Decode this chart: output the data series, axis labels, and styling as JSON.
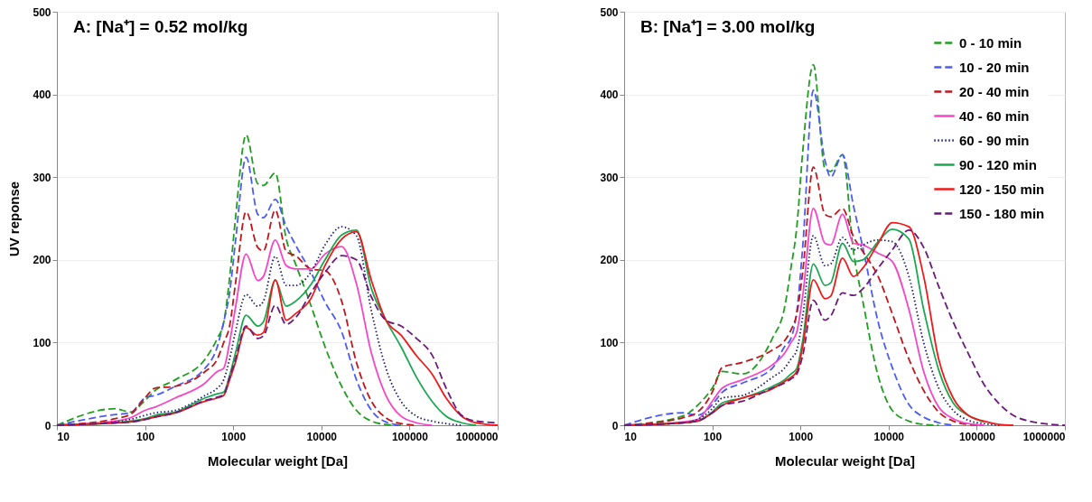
{
  "chart_data": [
    {
      "type": "line",
      "title": "A: [Na⁺] = 0.52 mol/kg",
      "xlabel": "Molecular weight [Da]",
      "ylabel": "UV reponse",
      "log": "x",
      "grid": "y",
      "legend": false,
      "xlim": [
        10,
        1000000
      ],
      "xticks": [
        10,
        100,
        1000,
        10000,
        100000,
        1000000
      ],
      "ylim": [
        0,
        500
      ],
      "yticks": [
        0,
        100,
        200,
        300,
        400,
        500
      ],
      "x": [
        10,
        46,
        68,
        100,
        130,
        220,
        480,
        660,
        780,
        910,
        1060,
        1400,
        1900,
        2200,
        3000,
        4000,
        5100,
        7600,
        11000,
        17000,
        25000,
        37000,
        54000,
        80000,
        120000,
        180000,
        260000,
        390000,
        570000,
        1000000
      ],
      "series": [
        {
          "color": "#1f9e1f",
          "line_style": "dashed",
          "values": [
            0,
            20,
            16,
            30,
            42,
            55,
            80,
            105,
            124,
            178,
            250,
            351,
            292,
            290,
            305,
            225,
            195,
            145,
            95,
            47,
            18,
            5,
            1,
            0,
            null,
            null,
            null,
            null,
            null,
            null
          ]
        },
        {
          "color": "#4a5cf5",
          "line_style": "dashed",
          "values": [
            0,
            13,
            15,
            33,
            36,
            47,
            69,
            95,
            125,
            160,
            222,
            324,
            255,
            251,
            273,
            240,
            218,
            185,
            149,
            113,
            55,
            18,
            4,
            0,
            null,
            null,
            null,
            null,
            null,
            null
          ]
        },
        {
          "color": "#c0161c",
          "line_style": "dashed",
          "values": [
            0,
            8,
            13,
            33,
            45,
            47,
            65,
            80,
            100,
            120,
            171,
            258,
            215,
            211,
            260,
            210,
            205,
            189,
            187,
            150,
            76,
            29,
            9,
            2,
            0,
            null,
            null,
            null,
            null,
            null
          ]
        },
        {
          "color": "#f545c8",
          "line_style": "solid",
          "values": [
            0,
            5,
            9,
            18,
            22,
            33,
            51,
            65,
            69,
            100,
            142,
            207,
            175,
            180,
            224,
            193,
            189,
            189,
            207,
            216,
            171,
            87,
            36,
            11,
            3,
            0,
            null,
            null,
            null,
            null
          ]
        },
        {
          "color": "#1c1c70",
          "line_style": "dotted",
          "values": [
            0,
            4,
            7,
            12,
            15,
            18,
            36,
            45,
            55,
            80,
            113,
            158,
            144,
            150,
            204,
            169,
            169,
            185,
            218,
            240,
            229,
            138,
            69,
            29,
            11,
            5,
            2,
            0,
            null,
            null
          ]
        },
        {
          "color": "#1aa852",
          "line_style": "solid",
          "values": [
            0,
            3,
            5,
            8,
            12,
            16,
            33,
            38,
            40,
            60,
            87,
            133,
            120,
            125,
            175,
            144,
            150,
            170,
            200,
            230,
            236,
            165,
            127,
            95,
            58,
            29,
            11,
            3,
            0,
            null
          ]
        },
        {
          "color": "#f01a1a",
          "line_style": "solid",
          "values": [
            0,
            3,
            4,
            7,
            10,
            15,
            29,
            33,
            36,
            55,
            76,
            118,
            109,
            112,
            176,
            127,
            135,
            153,
            193,
            225,
            234,
            175,
            127,
            109,
            84,
            62,
            33,
            11,
            3,
            0
          ]
        },
        {
          "color": "#6a1a7a",
          "line_style": "dashed",
          "values": [
            0,
            3,
            4,
            7,
            10,
            15,
            30,
            34,
            37,
            58,
            80,
            120,
            105,
            108,
            145,
            122,
            130,
            160,
            185,
            205,
            200,
            155,
            127,
            120,
            105,
            85,
            45,
            12,
            5,
            3
          ]
        }
      ]
    },
    {
      "type": "line",
      "title": "B: [Na⁺] = 3.00 mol/kg",
      "xlabel": "Molecular weight [Da]",
      "log": "x",
      "grid": "y",
      "legend": "top right",
      "xlim": [
        10,
        1000000
      ],
      "xticks": [
        10,
        100,
        1000,
        10000,
        100000,
        1000000
      ],
      "ylim": [
        0,
        500
      ],
      "yticks": [
        0,
        100,
        200,
        300,
        400,
        500
      ],
      "x": [
        10,
        46,
        68,
        100,
        130,
        220,
        480,
        660,
        780,
        910,
        1060,
        1400,
        1900,
        2200,
        3000,
        4000,
        5100,
        7600,
        11000,
        17000,
        25000,
        37000,
        54000,
        80000,
        120000,
        180000,
        260000,
        390000,
        570000,
        1000000
      ],
      "series": [
        {
          "name": "0 - 10 min",
          "color": "#1f9e1f",
          "line_style": "dashed",
          "values": [
            0,
            11,
            24,
            45,
            65,
            62,
            105,
            142,
            190,
            240,
            330,
            436,
            310,
            307,
            327,
            210,
            150,
            60,
            18,
            5,
            1,
            0,
            null,
            null,
            null,
            null,
            null,
            null,
            null,
            null
          ]
        },
        {
          "name": "10 - 20 min",
          "color": "#4a5cf5",
          "line_style": "dashed",
          "values": [
            0,
            15,
            12,
            25,
            40,
            51,
            69,
            95,
            105,
            138,
            215,
            405,
            320,
            300,
            327,
            265,
            215,
            125,
            70,
            25,
            10,
            3,
            0,
            null,
            null,
            null,
            null,
            null,
            null,
            null
          ]
        },
        {
          "name": "20 - 40 min",
          "color": "#c0161c",
          "line_style": "dashed",
          "values": [
            0,
            9,
            16,
            40,
            70,
            76,
            91,
            102,
            115,
            135,
            185,
            312,
            255,
            252,
            262,
            228,
            210,
            180,
            135,
            80,
            42,
            16,
            5,
            1,
            0,
            null,
            null,
            null,
            null,
            null
          ]
        },
        {
          "name": "40 - 60 min",
          "color": "#f545c8",
          "line_style": "solid",
          "values": [
            0,
            4,
            7,
            29,
            45,
            55,
            73,
            87,
            100,
            113,
            156,
            262,
            220,
            218,
            255,
            220,
            218,
            208,
            198,
            140,
            65,
            22,
            8,
            2,
            0,
            null,
            null,
            null,
            null,
            null
          ]
        },
        {
          "name": "60 - 90 min",
          "color": "#1c1c70",
          "line_style": "dotted",
          "values": [
            0,
            3,
            7,
            20,
            33,
            36,
            58,
            69,
            80,
            91,
            131,
            229,
            193,
            195,
            227,
            212,
            218,
            224,
            222,
            180,
            100,
            45,
            18,
            6,
            2,
            0,
            null,
            null,
            null,
            null
          ]
        },
        {
          "name": "90 - 120 min",
          "color": "#1aa852",
          "line_style": "solid",
          "values": [
            0,
            3,
            5,
            16,
            27,
            33,
            47,
            55,
            62,
            69,
            102,
            195,
            169,
            172,
            220,
            198,
            200,
            222,
            237,
            225,
            140,
            67,
            27,
            12,
            4,
            null,
            null,
            null,
            null,
            null
          ]
        },
        {
          "name": "120 - 150 min",
          "color": "#f01a1a",
          "line_style": "solid",
          "values": [
            0,
            3,
            5,
            15,
            24,
            33,
            44,
            53,
            58,
            65,
            95,
            176,
            153,
            156,
            202,
            180,
            190,
            220,
            245,
            240,
            180,
            80,
            33,
            12,
            5,
            1,
            0,
            null,
            null,
            null
          ]
        },
        {
          "name": "150 - 180 min",
          "color": "#6a1a7a",
          "line_style": "dashed",
          "values": [
            0,
            3,
            5,
            15,
            24,
            29,
            45,
            51,
            56,
            62,
            84,
            151,
            127,
            132,
            160,
            157,
            165,
            190,
            212,
            236,
            215,
            168,
            125,
            87,
            50,
            26,
            12,
            5,
            2,
            0
          ]
        }
      ]
    }
  ]
}
